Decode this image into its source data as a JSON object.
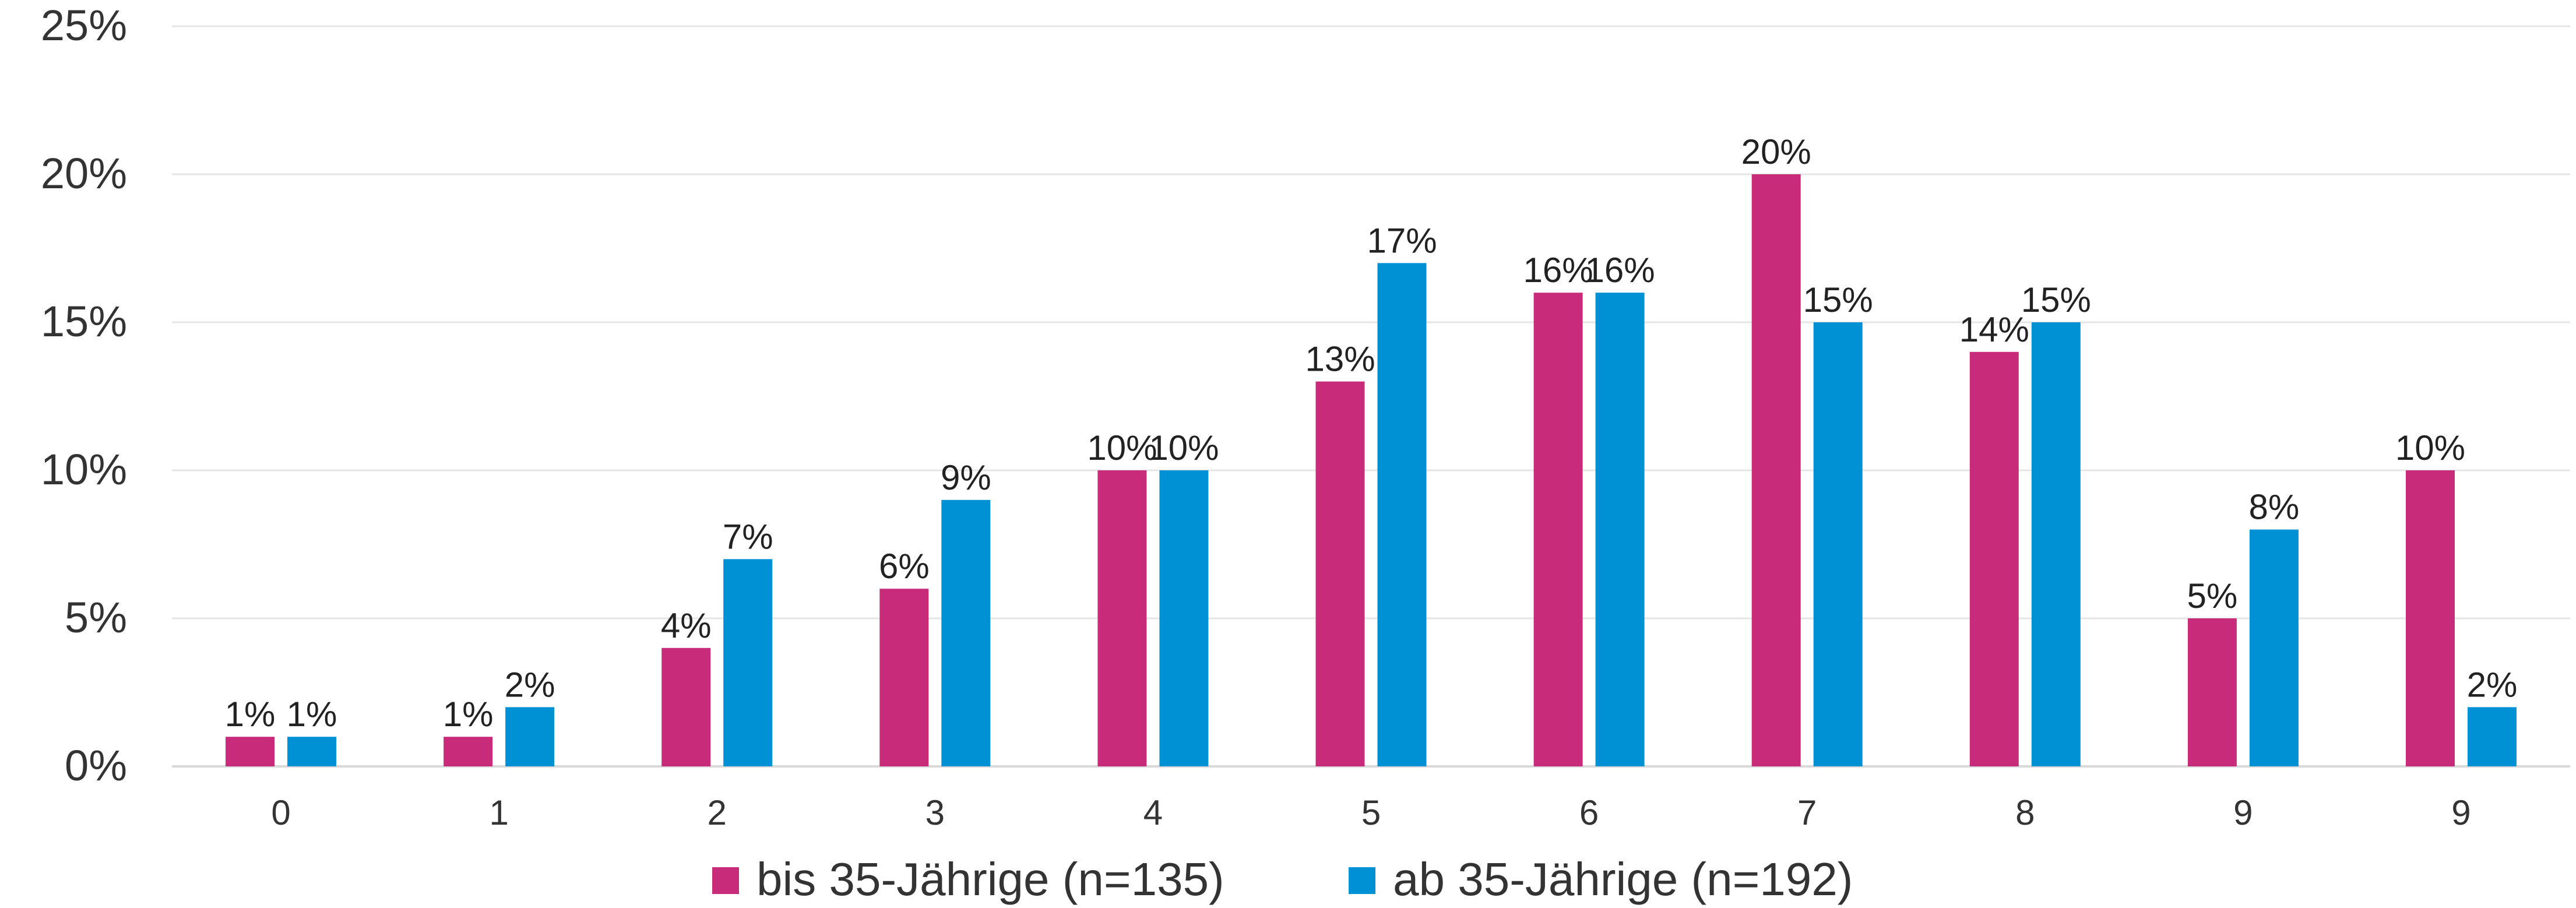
{
  "chart_data": {
    "type": "bar",
    "title": "",
    "xlabel": "",
    "ylabel": "",
    "ylim": [
      0,
      25
    ],
    "yticks": [
      "0%",
      "5%",
      "10%",
      "15%",
      "20%",
      "25%"
    ],
    "ytick_values": [
      0,
      5,
      10,
      15,
      20,
      25
    ],
    "grid": true,
    "legend_position": "bottom",
    "categories": [
      "0",
      "1",
      "2",
      "3",
      "4",
      "5",
      "6",
      "7",
      "8",
      "9",
      "9"
    ],
    "series": [
      {
        "name": "bis 35-Jährige (n=135)",
        "color": "#C92B7B",
        "values": [
          1,
          1,
          4,
          6,
          10,
          13,
          16,
          20,
          14,
          5,
          10
        ],
        "labels": [
          "1%",
          "1%",
          "4%",
          "6%",
          "10%",
          "13%",
          "16%",
          "20%",
          "14%",
          "5%",
          "10%"
        ]
      },
      {
        "name": "ab 35-Jährige (n=192)",
        "color": "#0090D4",
        "values": [
          1,
          2,
          7,
          9,
          10,
          17,
          16,
          15,
          15,
          8,
          2
        ],
        "labels": [
          "1%",
          "2%",
          "7%",
          "9%",
          "10%",
          "17%",
          "16%",
          "15%",
          "15%",
          "8%",
          "2%"
        ]
      }
    ]
  },
  "colors": {
    "gridline": "#E6E6E6",
    "axis": "#D9D9D9",
    "text": "#333333"
  }
}
